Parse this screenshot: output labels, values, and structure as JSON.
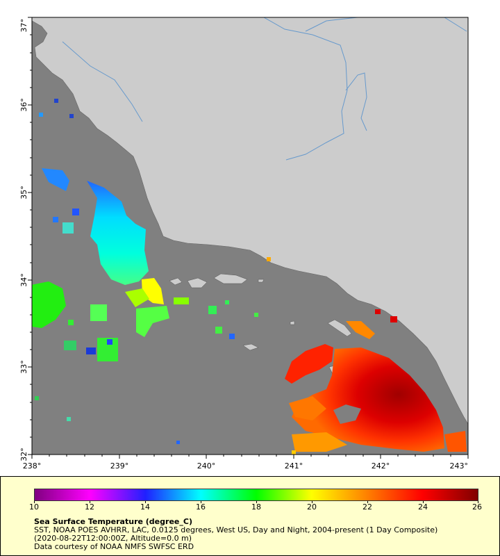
{
  "map": {
    "lat_ticks": [
      "32°",
      "33°",
      "34°",
      "35°",
      "36°",
      "37°"
    ],
    "lon_ticks": [
      "238°",
      "239°",
      "240°",
      "241°",
      "242°",
      "243°"
    ],
    "lat_range": [
      32,
      37
    ],
    "lon_range": [
      238,
      243
    ],
    "colors": {
      "land": "#cccccc",
      "ocean_nodata": "#808080",
      "rivers": "#6699cc"
    }
  },
  "legend": {
    "colorbar_ticks": [
      "10",
      "12",
      "14",
      "16",
      "18",
      "20",
      "22",
      "24",
      "26"
    ],
    "title": "Sea Surface Temperature (degree_C)",
    "line1": "SST, NOAA POES AVHRR, LAC, 0.0125 degrees, West US, Day and Night, 2004-present (1 Day Composite)",
    "line2": "(2020-08-22T12:00:00Z, Altitude=0.0 m)",
    "line3": "Data courtesy of NOAA NMFS SWFSC ERD"
  }
}
